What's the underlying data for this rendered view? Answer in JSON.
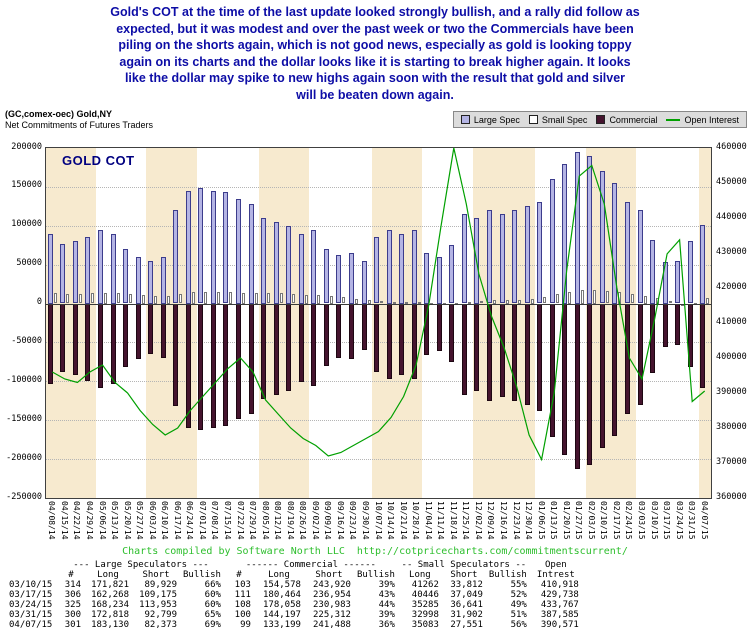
{
  "commentary": {
    "lines": [
      "Gold's COT at the time of the last update looked strongly bullish, and a rally did follow as",
      "expected, but it was modest and over the past week or two the Commercials have been",
      "piling on the shorts again, which is not good news, especially as gold is looking toppy",
      "again on its charts and the dollar looks like it is starting to break higher again. It looks",
      "like the dollar may spike to new highs again soon with the result that gold and silver",
      "will be beaten down again."
    ],
    "color": "#0d0da6"
  },
  "chart_header": {
    "instrument": "(GC,comex-oec) Gold,NY",
    "subtitle": "Net Commitments of Futures Traders",
    "watermark": "GOLD COT"
  },
  "legend": [
    {
      "label": "Large Spec",
      "type": "box",
      "color": "#b4b4e4"
    },
    {
      "label": "Small Spec",
      "type": "box",
      "color": "#ffffff"
    },
    {
      "label": "Commercial",
      "type": "box",
      "color": "#45142e"
    },
    {
      "label": "Open Interest",
      "type": "line",
      "color": "#00a000"
    }
  ],
  "chart_data": {
    "type": "bar",
    "title": "GOLD COT",
    "xlabel": "",
    "ylabel_left": "Net Commitments of Futures Traders",
    "ylabel_right": "Open Interest",
    "grid": true,
    "legend_position": "top-right",
    "stripe_colors": [
      "#f7eacf",
      "#ffffff"
    ],
    "left_axis": {
      "min": -250000,
      "max": 200000,
      "ticks": [
        200000,
        150000,
        100000,
        50000,
        0,
        -50000,
        -100000,
        -150000,
        -200000,
        -250000
      ]
    },
    "right_axis": {
      "min": 360000,
      "max": 460000,
      "ticks": [
        460000,
        450000,
        440000,
        430000,
        420000,
        410000,
        400000,
        390000,
        380000,
        370000,
        360000
      ]
    },
    "x": [
      "04/08/14",
      "04/15/14",
      "04/22/14",
      "04/29/14",
      "05/06/14",
      "05/13/14",
      "05/20/14",
      "05/27/14",
      "06/03/14",
      "06/10/14",
      "06/17/14",
      "06/24/14",
      "07/01/14",
      "07/08/14",
      "07/15/14",
      "07/22/14",
      "07/29/14",
      "08/05/14",
      "08/12/14",
      "08/19/14",
      "08/26/14",
      "09/02/14",
      "09/09/14",
      "09/16/14",
      "09/23/14",
      "09/30/14",
      "10/07/14",
      "10/14/14",
      "10/21/14",
      "10/28/14",
      "11/04/14",
      "11/11/14",
      "11/18/14",
      "11/25/14",
      "12/02/14",
      "12/09/14",
      "12/16/14",
      "12/23/14",
      "12/30/14",
      "01/06/15",
      "01/13/15",
      "01/20/15",
      "01/27/15",
      "02/03/15",
      "02/10/15",
      "02/17/15",
      "02/24/15",
      "03/03/15",
      "03/10/15",
      "03/17/15",
      "03/24/15",
      "03/31/15",
      "04/07/15"
    ],
    "series": [
      {
        "name": "Large Spec",
        "type": "bar",
        "axis": "left",
        "color": "#b4b4e4",
        "values": [
          90000,
          76000,
          80000,
          86000,
          95000,
          90000,
          70000,
          60000,
          55000,
          60000,
          120000,
          145000,
          148000,
          145000,
          143000,
          135000,
          128000,
          110000,
          105000,
          100000,
          90000,
          95000,
          70000,
          62000,
          65000,
          55000,
          85000,
          95000,
          90000,
          95000,
          65000,
          60000,
          75000,
          115000,
          110000,
          120000,
          115000,
          120000,
          125000,
          130000,
          160000,
          180000,
          195000,
          190000,
          170000,
          155000,
          130000,
          120000,
          81892,
          53093,
          54281,
          80019,
          100757
        ]
      },
      {
        "name": "Small Spec",
        "type": "bar",
        "axis": "left",
        "color": "#ffffff",
        "values": [
          13000,
          12000,
          12000,
          13000,
          14000,
          13000,
          12000,
          11000,
          10000,
          10000,
          12000,
          15000,
          15000,
          15000,
          15000,
          14000,
          14000,
          13000,
          13000,
          12000,
          11000,
          11000,
          10000,
          8000,
          6000,
          5000,
          3000,
          2000,
          2000,
          2000,
          1000,
          500,
          500,
          2000,
          3000,
          5000,
          5000,
          5000,
          6000,
          8000,
          12000,
          15000,
          18000,
          18000,
          16000,
          15000,
          12000,
          10000,
          7450,
          3397,
          -1356,
          1096,
          7532
        ]
      },
      {
        "name": "Commercial",
        "type": "bar",
        "axis": "left",
        "color": "#45142e",
        "values": [
          -103000,
          -88000,
          -92000,
          -99000,
          -109000,
          -103000,
          -82000,
          -71000,
          -65000,
          -70000,
          -132000,
          -160000,
          -163000,
          -160000,
          -158000,
          -149000,
          -142000,
          -123000,
          -118000,
          -112000,
          -101000,
          -106000,
          -80000,
          -70000,
          -71000,
          -60000,
          -88000,
          -97000,
          -92000,
          -97000,
          -66000,
          -60500,
          -75500,
          -117000,
          -113000,
          -125000,
          -120000,
          -125000,
          -131000,
          -138000,
          -172000,
          -195000,
          -213000,
          -208000,
          -186000,
          -170000,
          -142000,
          -130000,
          -89342,
          -56490,
          -52925,
          -81115,
          -108289
        ]
      },
      {
        "name": "Open Interest",
        "type": "line",
        "axis": "right",
        "color": "#00a000",
        "values": [
          396000,
          394000,
          393000,
          396000,
          398000,
          393000,
          390000,
          385000,
          381000,
          378000,
          380000,
          385000,
          389000,
          393000,
          397000,
          400000,
          396000,
          388000,
          384000,
          380000,
          377000,
          375000,
          372000,
          373000,
          375000,
          377000,
          379000,
          383000,
          389000,
          398000,
          415000,
          438000,
          460000,
          444000,
          424000,
          412000,
          403000,
          392000,
          378000,
          371000,
          390000,
          425000,
          452000,
          455000,
          444000,
          420000,
          400000,
          394000,
          410918,
          429738,
          433767,
          387585,
          390571
        ]
      }
    ]
  },
  "caption": "Charts compiled by Software North LLC  http://cotpricecharts.com/commitmentscurrent/",
  "table": {
    "group_headers": [
      "--- Large Speculators ---",
      "------ Commercial ------",
      "-- Small Speculators --",
      "Open"
    ],
    "column_headers": [
      "#",
      "Long",
      "Short",
      "Bullish",
      "#",
      "Long",
      "Short",
      "Bullish",
      "Long",
      "Short",
      "Bullish",
      "Intrest"
    ],
    "rows": [
      [
        "03/10/15",
        "314",
        "171,821",
        "89,929",
        "66%",
        "103",
        "154,578",
        "243,920",
        "39%",
        "41262",
        "33,812",
        "55%",
        "410,918"
      ],
      [
        "03/17/15",
        "306",
        "162,268",
        "109,175",
        "60%",
        "111",
        "180,464",
        "236,954",
        "43%",
        "40446",
        "37,049",
        "52%",
        "429,738"
      ],
      [
        "03/24/15",
        "325",
        "168,234",
        "113,953",
        "60%",
        "108",
        "178,058",
        "230,983",
        "44%",
        "35285",
        "36,641",
        "49%",
        "433,767"
      ],
      [
        "03/31/15",
        "300",
        "172,818",
        "92,799",
        "65%",
        "100",
        "144,197",
        "225,312",
        "39%",
        "32998",
        "31,902",
        "51%",
        "387,585"
      ],
      [
        "04/07/15",
        "301",
        "183,130",
        "82,373",
        "69%",
        "99",
        "133,199",
        "241,488",
        "36%",
        "35083",
        "27,551",
        "56%",
        "390,571"
      ]
    ]
  }
}
